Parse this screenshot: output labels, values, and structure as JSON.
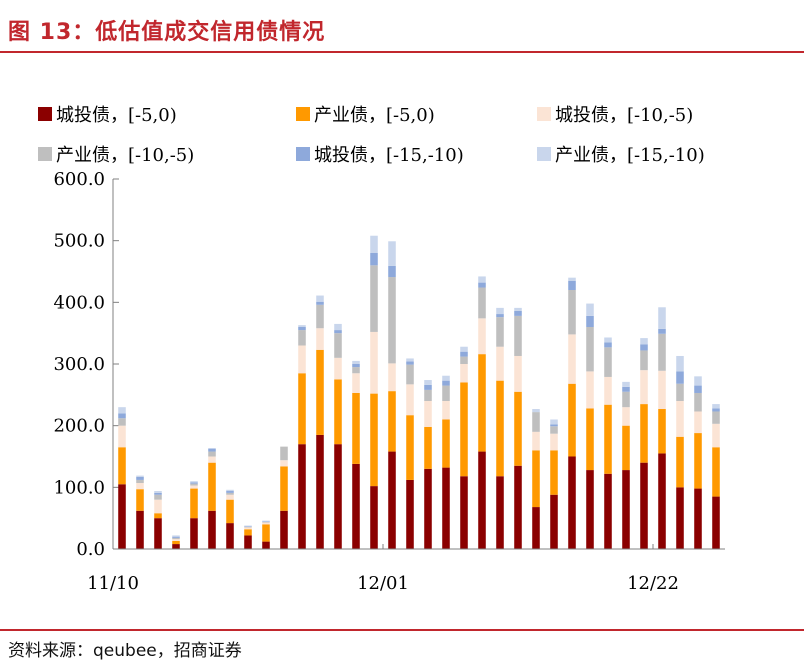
{
  "figure": {
    "title": "图 13：低估值成交信用债情况",
    "source": "资料来源：qeubee，招商证券"
  },
  "chart_data": {
    "type": "bar",
    "stacked": true,
    "ylim": [
      0,
      600
    ],
    "yticks": [
      "0.0",
      "100.0",
      "200.0",
      "300.0",
      "400.0",
      "500.0",
      "600.0"
    ],
    "x_tick_labels": [
      {
        "label": "11/10",
        "index": 0
      },
      {
        "label": "12/01",
        "index": 15
      },
      {
        "label": "12/22",
        "index": 30
      }
    ],
    "legend_position": "top",
    "series": [
      {
        "name": "城投债，[-5,0)",
        "color": "#8b0000",
        "values": [
          105,
          62,
          50,
          8,
          50,
          62,
          42,
          22,
          12,
          62,
          170,
          185,
          170,
          138,
          102,
          158,
          112,
          130,
          132,
          118,
          158,
          118,
          135,
          68,
          88,
          150,
          128,
          122,
          128,
          140,
          155,
          100,
          98,
          85
        ]
      },
      {
        "name": "产业债，[-5,0)",
        "color": "#ff9900",
        "values": [
          60,
          35,
          8,
          5,
          48,
          78,
          38,
          10,
          28,
          72,
          115,
          138,
          105,
          115,
          150,
          98,
          105,
          68,
          78,
          152,
          158,
          155,
          120,
          92,
          72,
          118,
          100,
          112,
          72,
          95,
          72,
          82,
          90,
          80
        ]
      },
      {
        "name": "城投债，[-10,-5)",
        "color": "#fbe4d5",
        "values": [
          35,
          10,
          22,
          3,
          5,
          10,
          8,
          3,
          3,
          10,
          45,
          35,
          35,
          32,
          100,
          45,
          50,
          42,
          30,
          30,
          58,
          55,
          58,
          30,
          27,
          80,
          60,
          45,
          30,
          55,
          62,
          58,
          35,
          38
        ]
      },
      {
        "name": "产业债，[-10,-5)",
        "color": "#bfbfbf",
        "values": [
          12,
          5,
          8,
          2,
          3,
          8,
          3,
          1,
          1,
          22,
          25,
          38,
          40,
          10,
          108,
          140,
          32,
          18,
          25,
          12,
          50,
          48,
          65,
          32,
          12,
          72,
          72,
          48,
          25,
          32,
          60,
          28,
          30,
          20
        ]
      },
      {
        "name": "城投债，[-15,-10)",
        "color": "#8ea9db",
        "values": [
          8,
          5,
          3,
          2,
          2,
          5,
          3,
          1,
          1,
          0,
          5,
          5,
          5,
          5,
          20,
          18,
          5,
          8,
          8,
          8,
          8,
          5,
          8,
          0,
          3,
          15,
          18,
          8,
          8,
          10,
          8,
          20,
          12,
          5
        ]
      },
      {
        "name": "产业债，[-15,-10)",
        "color": "#c9d6ec",
        "values": [
          10,
          2,
          3,
          2,
          2,
          0,
          2,
          1,
          1,
          0,
          3,
          10,
          10,
          5,
          28,
          40,
          5,
          8,
          8,
          8,
          10,
          10,
          5,
          5,
          8,
          5,
          20,
          8,
          8,
          10,
          35,
          25,
          15,
          7
        ]
      }
    ]
  }
}
